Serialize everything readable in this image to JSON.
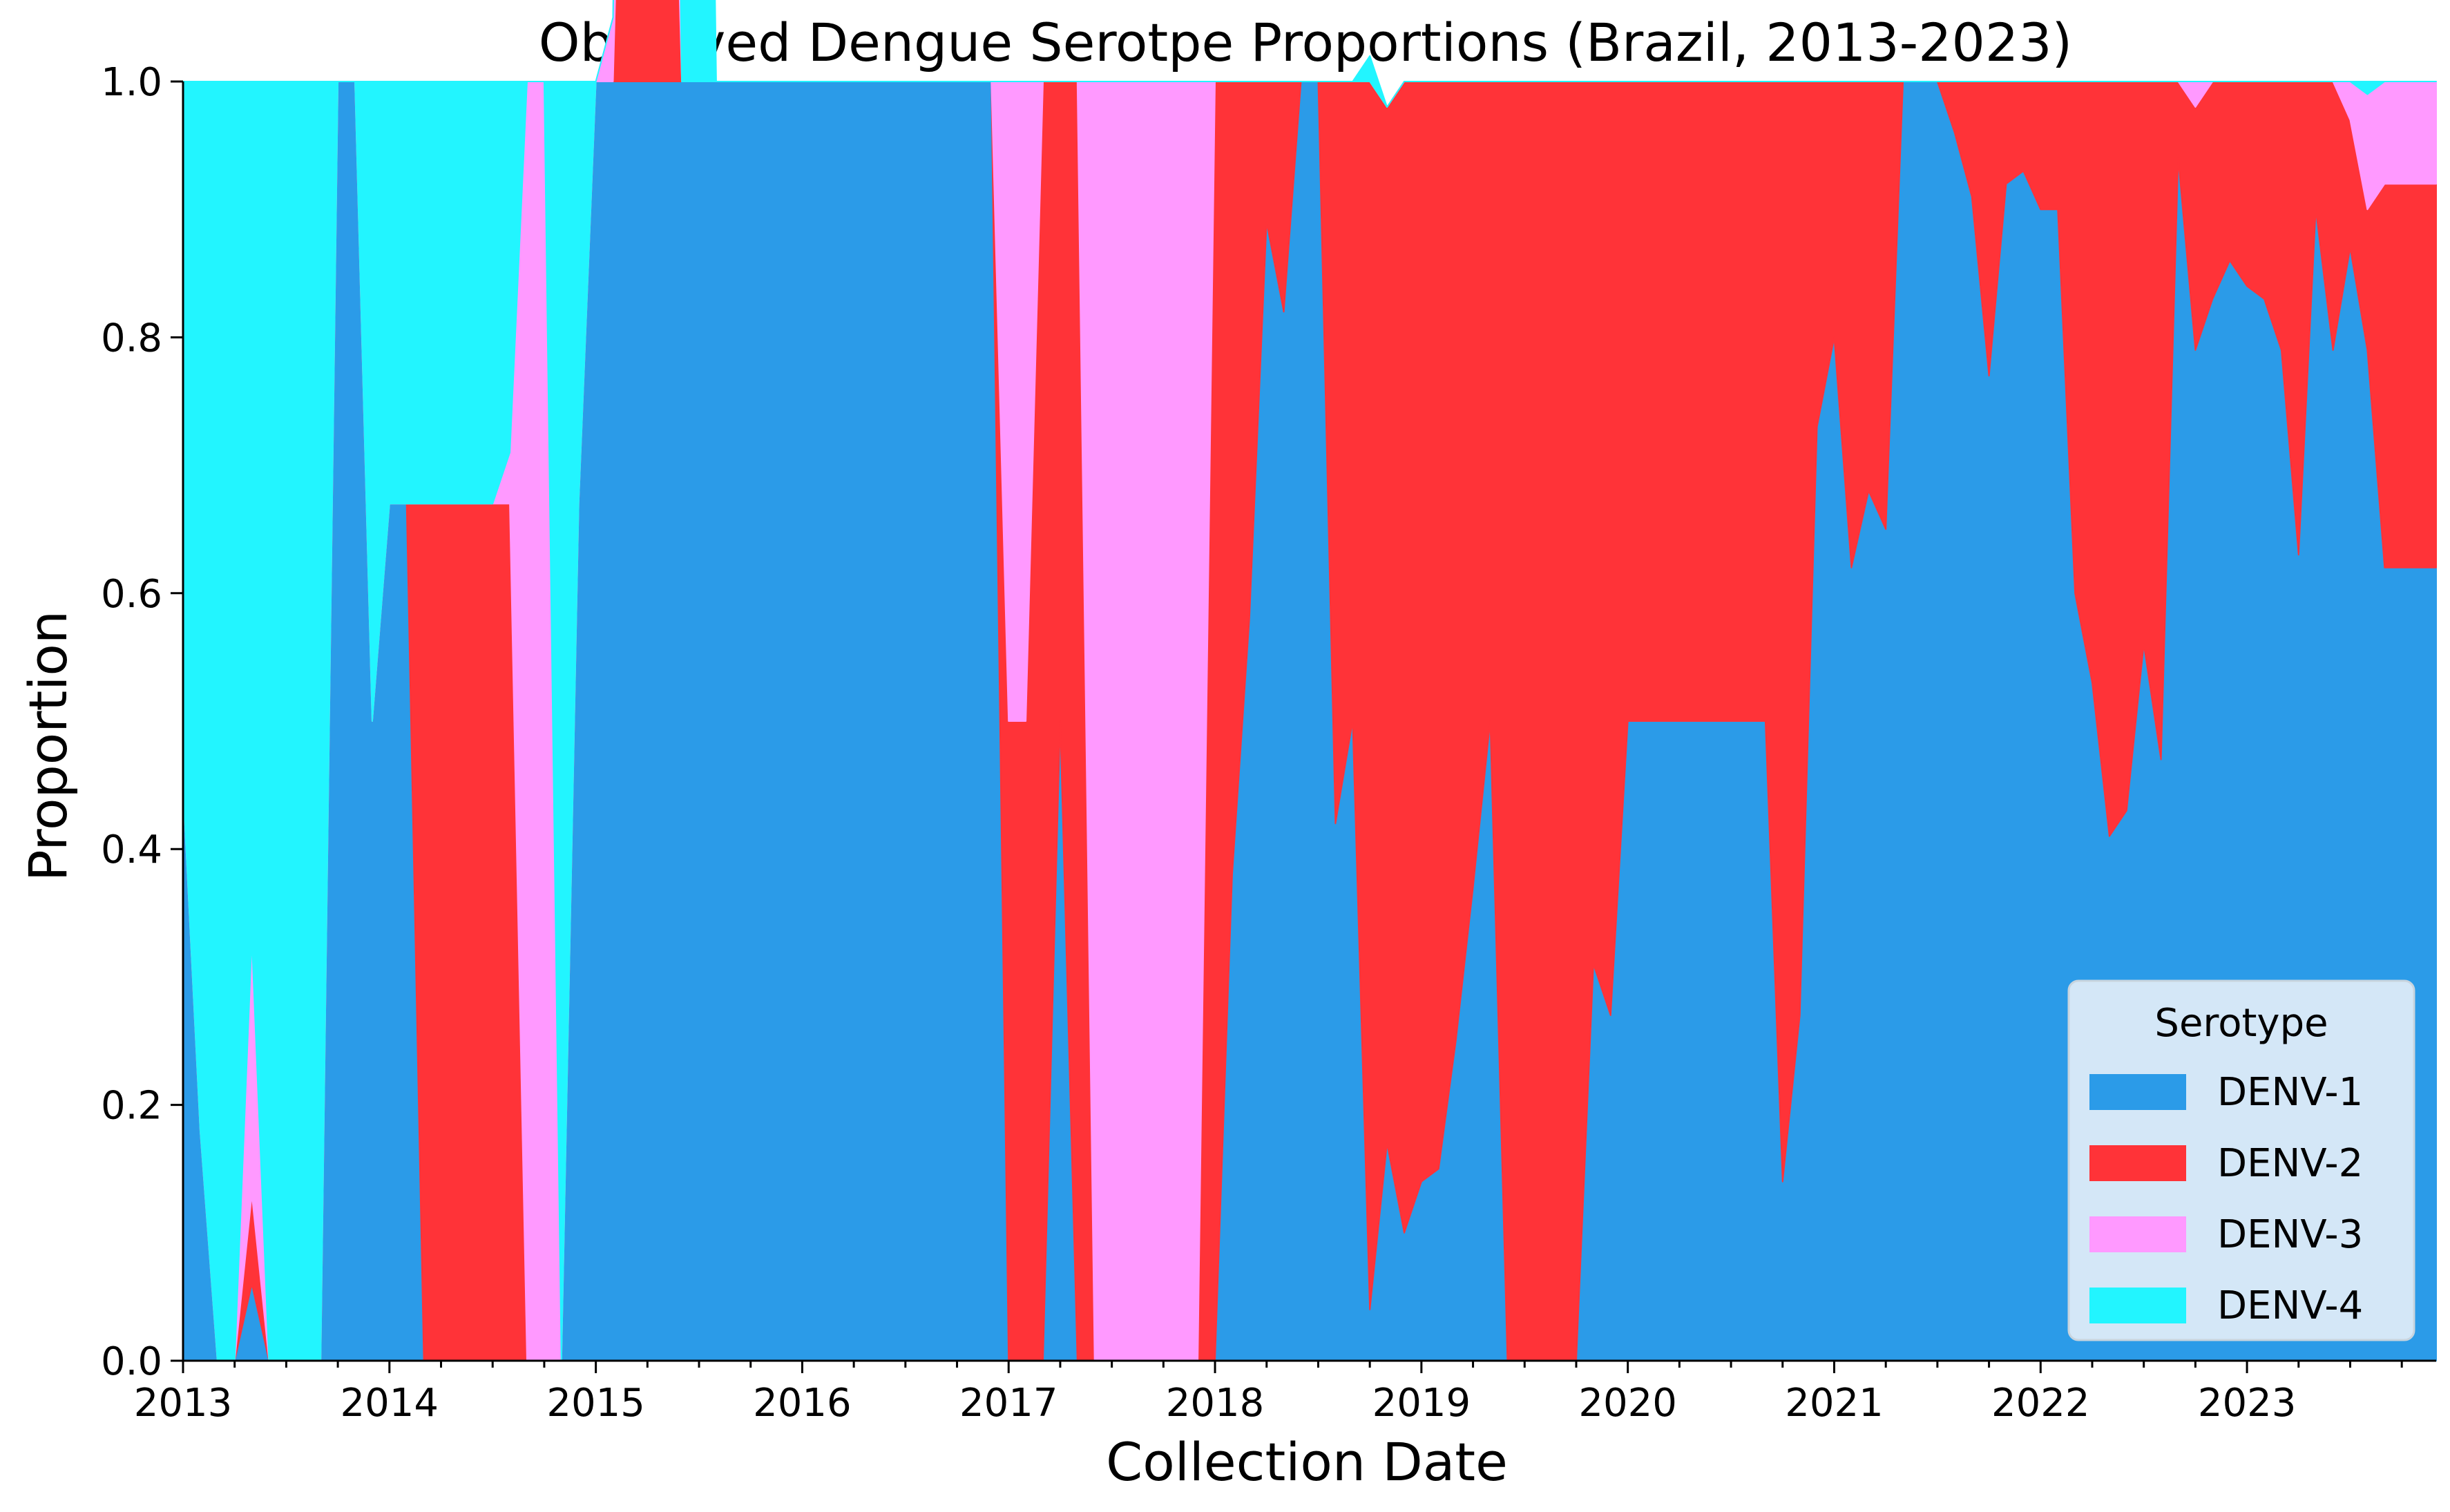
{
  "chart_data": {
    "type": "area",
    "stacked": true,
    "normalized": true,
    "title": "Observed Dengue Serotpe Proportions (Brazil, 2013-2023)",
    "xlabel": "Collection Date",
    "ylabel": "Proportion",
    "xlim": [
      "2013-01",
      "2023-12"
    ],
    "ylim": [
      0,
      1.0
    ],
    "x_ticks": [
      "2013",
      "2014",
      "2015",
      "2016",
      "2017",
      "2018",
      "2019",
      "2020",
      "2021",
      "2022",
      "2023"
    ],
    "y_ticks": [
      "0.0",
      "0.2",
      "0.4",
      "0.6",
      "0.8",
      "1.0"
    ],
    "grid": false,
    "legend": {
      "title": "Serotype",
      "placement": "bottom-right"
    },
    "x": [
      "2013-01",
      "2013-02",
      "2013-03",
      "2013-04",
      "2013-05",
      "2013-06",
      "2013-07",
      "2013-08",
      "2013-09",
      "2013-10",
      "2013-11",
      "2013-12",
      "2014-01",
      "2014-02",
      "2014-03",
      "2014-04",
      "2014-05",
      "2014-06",
      "2014-07",
      "2014-08",
      "2014-09",
      "2014-10",
      "2014-11",
      "2014-12",
      "2015-01",
      "2015-02",
      "2015-03",
      "2015-04",
      "2015-05",
      "2015-06",
      "2015-07",
      "2015-08",
      "2015-09",
      "2015-10",
      "2015-11",
      "2015-12",
      "2016-01",
      "2016-02",
      "2016-03",
      "2016-04",
      "2016-05",
      "2016-06",
      "2016-07",
      "2016-08",
      "2016-09",
      "2016-10",
      "2016-11",
      "2016-12",
      "2017-01",
      "2017-02",
      "2017-03",
      "2017-04",
      "2017-05",
      "2017-06",
      "2017-07",
      "2017-08",
      "2017-09",
      "2017-10",
      "2017-11",
      "2017-12",
      "2018-01",
      "2018-02",
      "2018-03",
      "2018-04",
      "2018-05",
      "2018-06",
      "2018-07",
      "2018-08",
      "2018-09",
      "2018-10",
      "2018-11",
      "2018-12",
      "2019-01",
      "2019-02",
      "2019-03",
      "2019-04",
      "2019-05",
      "2019-06",
      "2019-07",
      "2019-08",
      "2019-09",
      "2019-10",
      "2019-11",
      "2019-12",
      "2020-01",
      "2020-02",
      "2020-03",
      "2020-04",
      "2020-05",
      "2020-06",
      "2020-07",
      "2020-08",
      "2020-09",
      "2020-10",
      "2020-11",
      "2020-12",
      "2021-01",
      "2021-02",
      "2021-03",
      "2021-04",
      "2021-05",
      "2021-06",
      "2021-07",
      "2021-08",
      "2021-09",
      "2021-10",
      "2021-11",
      "2021-12",
      "2022-01",
      "2022-02",
      "2022-03",
      "2022-04",
      "2022-05",
      "2022-06",
      "2022-07",
      "2022-08",
      "2022-09",
      "2022-10",
      "2022-11",
      "2022-12",
      "2023-01",
      "2023-02",
      "2023-03",
      "2023-04",
      "2023-05",
      "2023-06",
      "2023-07",
      "2023-08",
      "2023-09",
      "2023-10",
      "2023-11",
      "2023-12"
    ],
    "series": [
      {
        "name": "DENV-1",
        "color": "#2b9be8",
        "values": [
          0.45,
          0.18,
          0,
          0,
          0.06,
          0,
          0,
          0,
          0,
          1,
          1,
          0.5,
          0.67,
          0.67,
          0,
          0,
          0,
          0,
          0,
          0,
          0,
          0,
          0,
          0.67,
          1,
          1,
          1,
          1,
          1,
          1,
          1,
          1,
          1,
          1,
          1,
          1,
          1,
          1,
          1,
          1,
          1,
          1,
          1,
          1,
          1,
          1,
          1,
          1,
          0,
          0,
          0,
          0.5,
          0,
          0,
          0,
          0,
          0,
          0,
          0,
          0,
          0,
          0.38,
          0.58,
          0.89,
          0.82,
          1,
          1,
          0.42,
          0.5,
          0.04,
          0.17,
          0.1,
          0.14,
          0.15,
          0.25,
          0.37,
          0.5,
          0,
          0,
          0,
          0,
          0,
          0.31,
          0.27,
          0.5,
          0.5,
          0.5,
          0.5,
          0.5,
          0.5,
          0.5,
          0.5,
          0.5,
          0.14,
          0.27,
          0.73,
          0.8,
          0.62,
          0.68,
          0.65,
          1,
          1,
          1,
          0.96,
          0.91,
          0.77,
          0.92,
          0.93,
          0.9,
          0.9,
          0.6,
          0.53,
          0.41,
          0.43,
          0.56,
          0.47,
          0.94,
          0.79,
          0.83,
          0.86,
          0.84,
          0.83,
          0.79,
          0.63,
          0.9,
          0.79,
          0.87,
          0.79,
          0.62,
          0.62,
          0.62,
          0.62
        ]
      },
      {
        "name": "DENV-2",
        "color": "#ff3338",
        "values": [
          0,
          0,
          0,
          0,
          0.07,
          0,
          0,
          0,
          0,
          0,
          0,
          0,
          0,
          0,
          0.67,
          0.67,
          0.67,
          0.67,
          0.67,
          0.67,
          0,
          0,
          0,
          0,
          0,
          0,
          0.5,
          0.5,
          0.5,
          0,
          0,
          0,
          0,
          0,
          0,
          0,
          0,
          0,
          0,
          0,
          0,
          0,
          0,
          0,
          0,
          0,
          0,
          0,
          0.5,
          0.5,
          1,
          0.5,
          1,
          0,
          0,
          0,
          0,
          0,
          0,
          0,
          1,
          0.62,
          0.42,
          0.11,
          0.18,
          0,
          0,
          0.58,
          0.5,
          0.96,
          0.81,
          0.9,
          0.86,
          0.85,
          0.75,
          0.63,
          0.5,
          1,
          1,
          1,
          1,
          1,
          0.69,
          0.73,
          0.5,
          0.5,
          0.5,
          0.5,
          0.5,
          0.5,
          0.5,
          0.5,
          0.5,
          0.86,
          0.73,
          0.27,
          0.2,
          0.38,
          0.32,
          0.35,
          0,
          0,
          0,
          0.04,
          0.09,
          0.23,
          0.08,
          0.07,
          0.1,
          0.1,
          0.4,
          0.47,
          0.59,
          0.57,
          0.44,
          0.53,
          0.06,
          0.19,
          0.17,
          0.14,
          0.16,
          0.17,
          0.21,
          0.37,
          0.1,
          0.21,
          0.1,
          0.11,
          0.3,
          0.3,
          0.3,
          0.3
        ]
      },
      {
        "name": "DENV-3",
        "color": "#ff99ff",
        "values": [
          0,
          0,
          0,
          0,
          0.2,
          0,
          0,
          0,
          0,
          0,
          0,
          0,
          0,
          0,
          0,
          0,
          0,
          0,
          0,
          0.04,
          1,
          1,
          0,
          0,
          0,
          0.05,
          0.5,
          0.5,
          0.5,
          0,
          0,
          0,
          0,
          0,
          0,
          0,
          0,
          0,
          0,
          0,
          0,
          0,
          0,
          0,
          0,
          0,
          0,
          0,
          0.5,
          0.5,
          0,
          0,
          0,
          1,
          1,
          1,
          1,
          1,
          1,
          1,
          0,
          0,
          0,
          0,
          0,
          0,
          0,
          0,
          0,
          0,
          0,
          0,
          0,
          0,
          0,
          0,
          0,
          0,
          0,
          0,
          0,
          0,
          0,
          0,
          0,
          0,
          0,
          0,
          0,
          0,
          0,
          0,
          0,
          0,
          0,
          0,
          0,
          0,
          0,
          0,
          0,
          0,
          0,
          0,
          0,
          0,
          0,
          0,
          0,
          0,
          0,
          0,
          0,
          0,
          0,
          0,
          0,
          0.02,
          0,
          0,
          0,
          0,
          0,
          0,
          0,
          0,
          0.03,
          0.09,
          0.08,
          0.08,
          0.08,
          0.08
        ]
      },
      {
        "name": "DENV-4",
        "color": "#22f5ff",
        "values": [
          0.55,
          0.82,
          1,
          1,
          0.67,
          1,
          1,
          1,
          1,
          0,
          0,
          0.5,
          0.33,
          0.33,
          0.33,
          0.33,
          0.33,
          0.33,
          0.33,
          0.29,
          0,
          0,
          1,
          0.33,
          0,
          0,
          0,
          0,
          0,
          1,
          1,
          0,
          0,
          0,
          0,
          0,
          0,
          0,
          0,
          0,
          0,
          0,
          0,
          0,
          0,
          0,
          0,
          0,
          0,
          0,
          0,
          0,
          0,
          0,
          0,
          0,
          0,
          0,
          0,
          0,
          0,
          0,
          0,
          0,
          0,
          0,
          0,
          0,
          0,
          0.02,
          0,
          0,
          0,
          0,
          0,
          0,
          0,
          0,
          0,
          0,
          0,
          0,
          0,
          0,
          0,
          0,
          0,
          0,
          0,
          0,
          0,
          0,
          0,
          0,
          0,
          0,
          0,
          0,
          0,
          0,
          0,
          0,
          0,
          0,
          0,
          0,
          0,
          0,
          0,
          0,
          0,
          0,
          0,
          0,
          0,
          0,
          0,
          0,
          0,
          0,
          0,
          0,
          0,
          0,
          0,
          0,
          0,
          0.01,
          0,
          0,
          0,
          0
        ]
      }
    ]
  }
}
